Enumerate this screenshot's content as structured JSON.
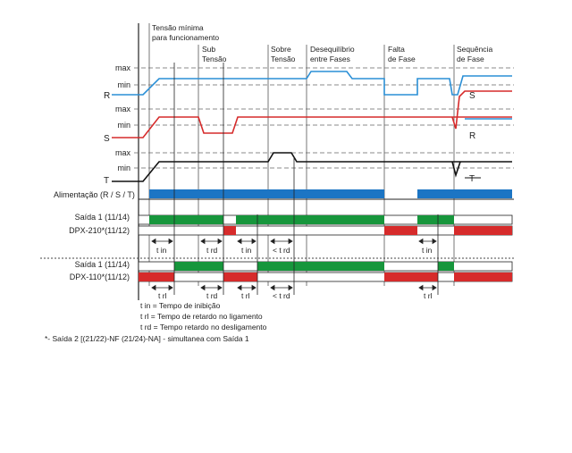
{
  "phases": [
    {
      "id": "tensao_minima",
      "lines": [
        "Tensão mínima",
        "para funcionamento"
      ]
    },
    {
      "id": "sub_tensao",
      "lines": [
        "Sub",
        "Tensão"
      ]
    },
    {
      "id": "sobre_tensao",
      "lines": [
        "Sobre",
        "Tensão"
      ]
    },
    {
      "id": "desequilibrio",
      "lines": [
        "Desequilíbrio",
        "entre Fases"
      ]
    },
    {
      "id": "falta_fase",
      "lines": [
        "Falta",
        "de Fase"
      ]
    },
    {
      "id": "sequencia_fase",
      "lines": [
        "Sequência",
        "de Fase"
      ]
    }
  ],
  "levels": {
    "max": "max",
    "min": "min"
  },
  "phase_labels": {
    "R": "R",
    "S": "S",
    "T": "T"
  },
  "colors": {
    "R": "#2a8fd6",
    "S": "#d62b2b",
    "T": "#111111",
    "supply": "#1c75c4",
    "closed": "#17963c",
    "open": "#d62b2b",
    "grid": "#777777"
  },
  "supply_label": "Alimentação (R / S / T)",
  "relays": [
    {
      "id": "dpx210",
      "out1": "Saída 1  (11/14)",
      "out2": "DPX-210*(11/12)"
    },
    {
      "id": "dpx110",
      "out1": "Saída 1  (11/14)",
      "out2": "DPX-110*(11/12)"
    }
  ],
  "time_marks": {
    "tin": "t in",
    "trd": "t rd",
    "ltrd": "< t rd",
    "trl": "t rl"
  },
  "legend": [
    "t in = Tempo de inibição",
    "t rl = Tempo de retardo no ligamento",
    "t rd = Tempo retardo no desligamento"
  ],
  "footnote": "*- Saída 2 [(21/22)-NF (21/24)-NA] - simultanea com Saída 1"
}
